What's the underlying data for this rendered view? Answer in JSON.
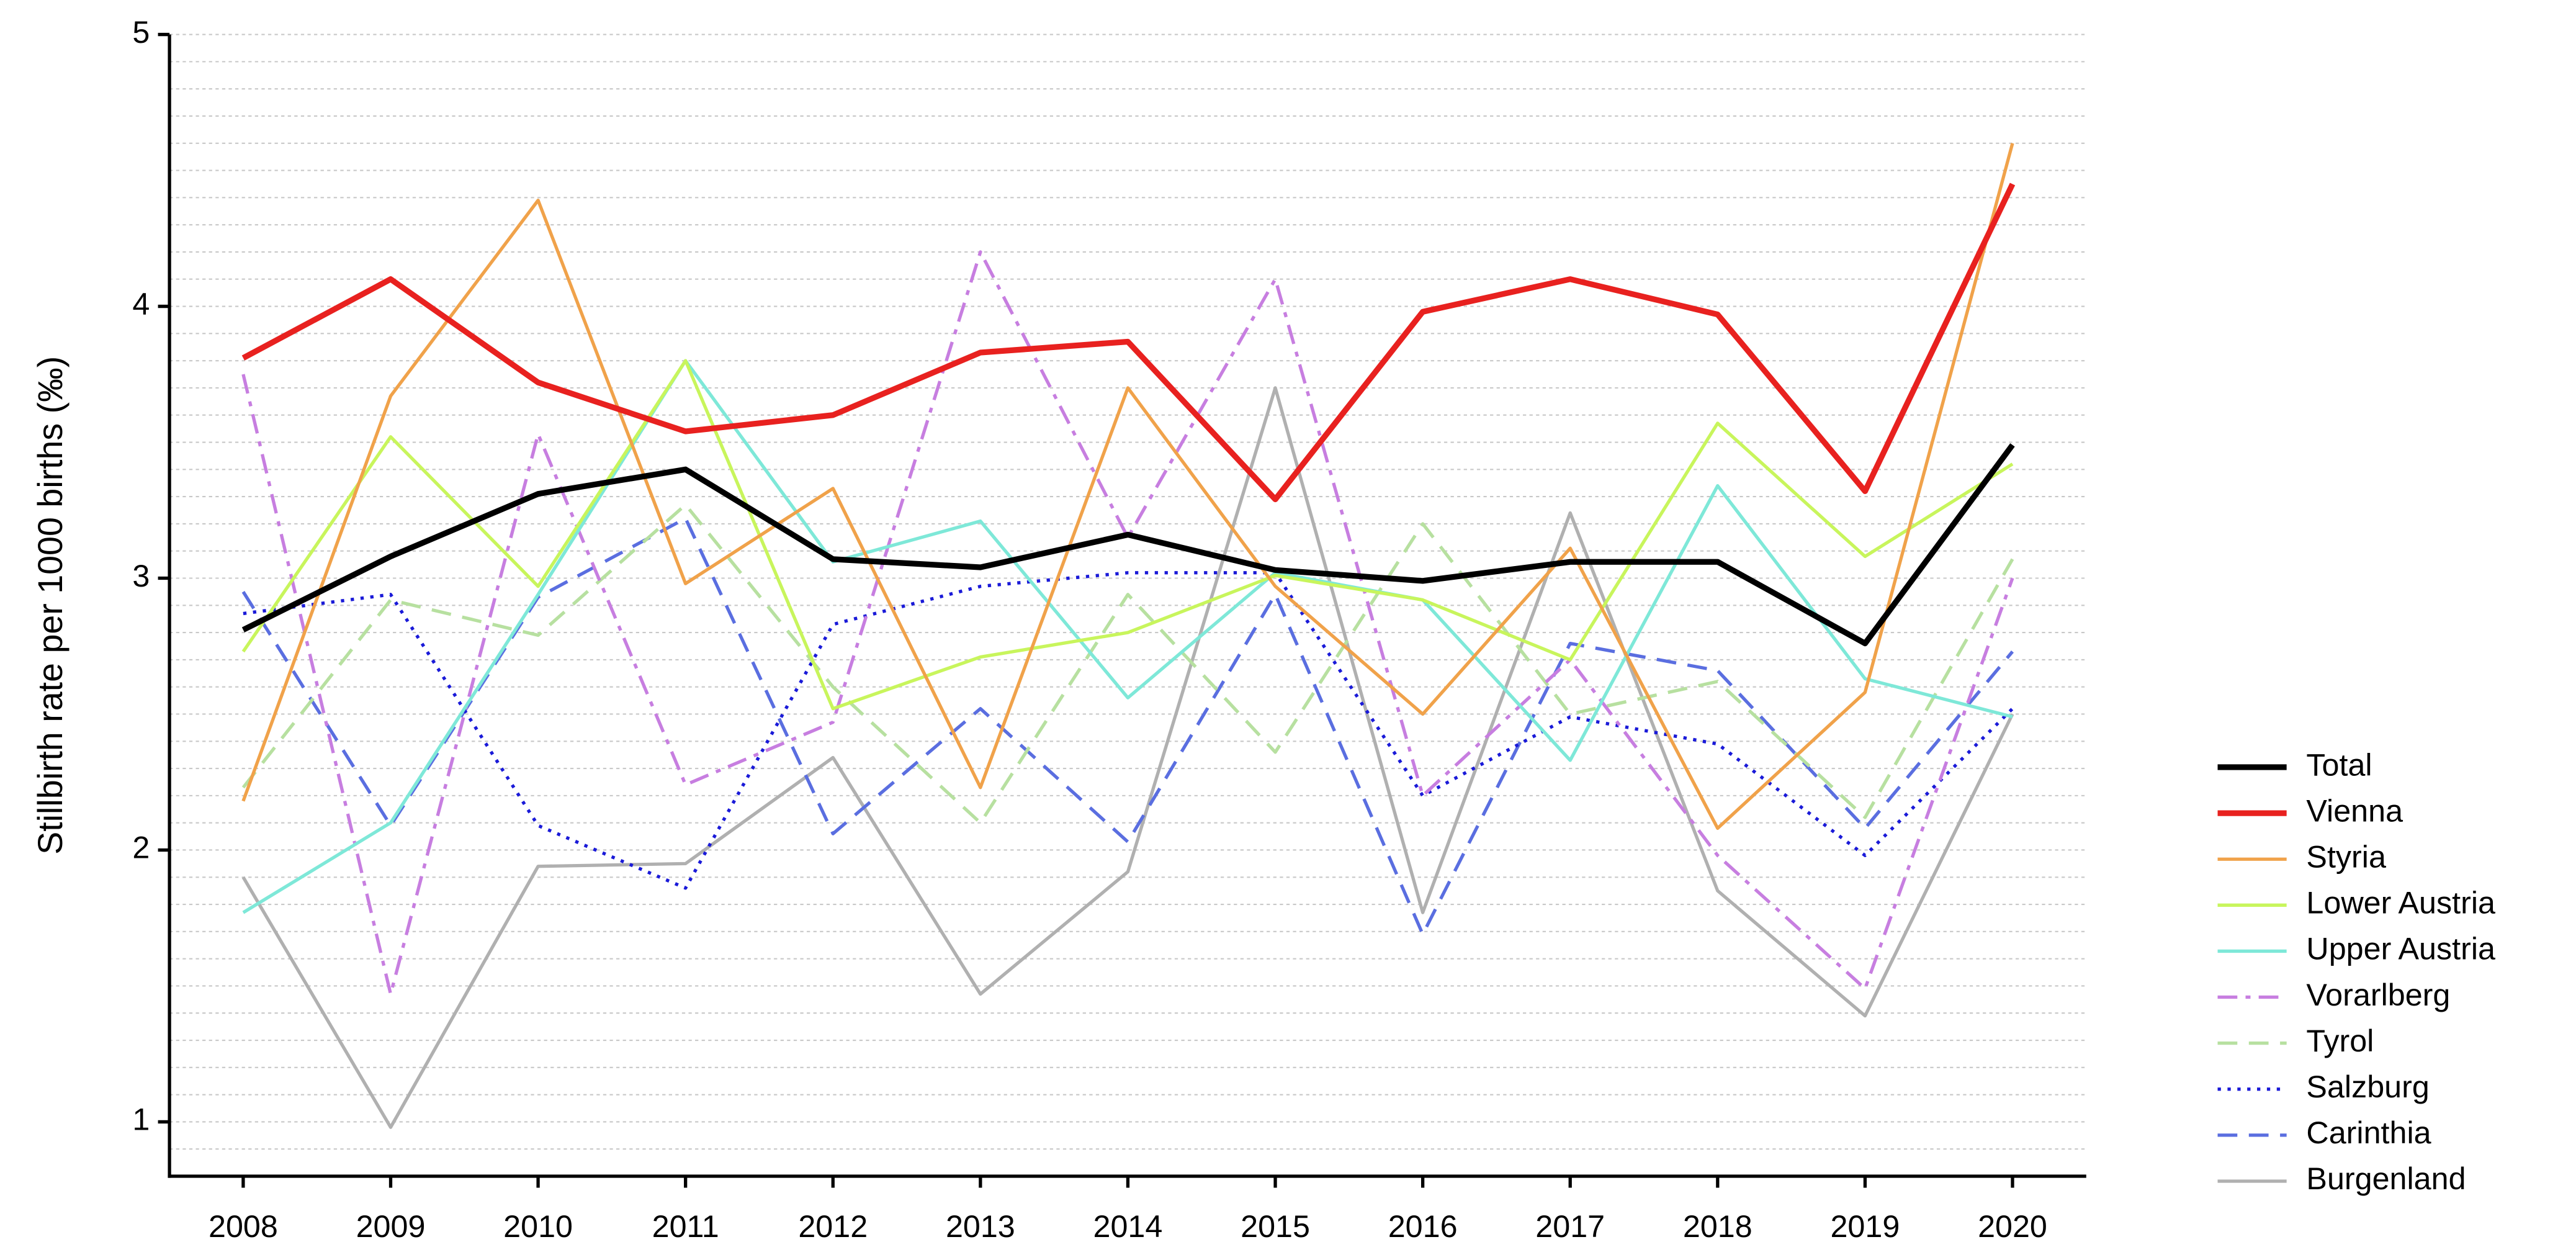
{
  "chart_data": {
    "type": "line",
    "y_label": "Stillbirth rate per 1000 births (‰)",
    "categories": [
      "2008",
      "2009",
      "2010",
      "2011",
      "2012",
      "2013",
      "2014",
      "2015",
      "2016",
      "2017",
      "2018",
      "2019",
      "2020"
    ],
    "ylim": [
      0.8,
      5
    ],
    "yticks": [
      1,
      2,
      3,
      4,
      5
    ],
    "grid": true,
    "minor_grid_step": 0.1,
    "legend": "lower right",
    "series": [
      {
        "name": "Total",
        "color": "#000000",
        "dash": "solid",
        "linewidth": 3.5,
        "values": [
          2.81,
          3.08,
          3.31,
          3.4,
          3.07,
          3.04,
          3.16,
          3.03,
          2.99,
          3.06,
          3.06,
          2.76,
          3.49
        ]
      },
      {
        "name": "Vienna",
        "color": "#e8211f",
        "dash": "solid",
        "linewidth": 3.5,
        "values": [
          3.81,
          4.1,
          3.72,
          3.54,
          3.6,
          3.83,
          3.87,
          3.29,
          3.98,
          4.1,
          3.97,
          3.32,
          4.45
        ]
      },
      {
        "name": "Styria",
        "color": "#f0a24a",
        "dash": "solid",
        "linewidth": 2,
        "values": [
          2.18,
          3.67,
          4.39,
          2.98,
          3.33,
          2.23,
          3.7,
          2.97,
          2.5,
          3.11,
          2.08,
          2.58,
          4.6
        ]
      },
      {
        "name": "Lower Austria",
        "color": "#c8f55c",
        "dash": "solid",
        "linewidth": 2,
        "values": [
          2.73,
          3.52,
          2.97,
          3.8,
          2.52,
          2.71,
          2.8,
          3.01,
          2.92,
          2.7,
          3.57,
          3.08,
          3.42
        ]
      },
      {
        "name": "Upper Austria",
        "color": "#7ee8d8",
        "dash": "solid",
        "linewidth": 2,
        "values": [
          1.77,
          2.1,
          2.94,
          3.8,
          3.06,
          3.21,
          2.56,
          3.02,
          2.92,
          2.33,
          3.34,
          2.63,
          2.49
        ]
      },
      {
        "name": "Vorarlberg",
        "color": "#c77ee0",
        "dash": "dashdot",
        "linewidth": 2,
        "values": [
          3.75,
          1.47,
          3.53,
          2.24,
          2.47,
          4.2,
          3.15,
          4.1,
          2.2,
          2.7,
          1.98,
          1.49,
          3.0
        ]
      },
      {
        "name": "Tyrol",
        "color": "#b7e0a0",
        "dash": "dashed",
        "linewidth": 2,
        "values": [
          2.23,
          2.92,
          2.79,
          3.27,
          2.6,
          2.1,
          2.94,
          2.36,
          3.2,
          2.5,
          2.62,
          2.12,
          3.07
        ]
      },
      {
        "name": "Salzburg",
        "color": "#1a1ad8",
        "dash": "dotted",
        "linewidth": 2,
        "values": [
          2.87,
          2.94,
          2.09,
          1.86,
          2.83,
          2.97,
          3.02,
          3.02,
          2.2,
          2.49,
          2.39,
          1.98,
          2.52
        ]
      },
      {
        "name": "Carinthia",
        "color": "#5a6ee0",
        "dash": "dashed",
        "linewidth": 2,
        "values": [
          2.95,
          2.09,
          2.93,
          3.22,
          2.06,
          2.52,
          2.03,
          2.94,
          1.69,
          2.76,
          2.66,
          2.08,
          2.73
        ]
      },
      {
        "name": "Burgenland",
        "color": "#b0b0b0",
        "dash": "solid",
        "linewidth": 2,
        "values": [
          1.9,
          0.98,
          1.94,
          1.95,
          2.34,
          1.47,
          1.92,
          3.7,
          1.77,
          3.24,
          1.85,
          1.39,
          2.5
        ]
      }
    ]
  }
}
